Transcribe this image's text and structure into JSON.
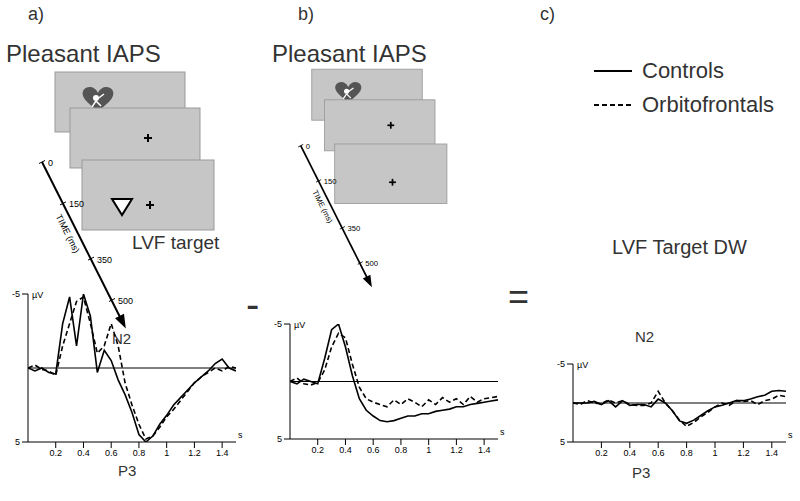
{
  "chart_data": [
    {
      "type": "line",
      "title": "Pleasant IAPS",
      "annotations": [
        "a)",
        "LVF target",
        "N2",
        "P3"
      ],
      "x_label": "s",
      "y_label": "µV",
      "xlim": [
        0,
        1.5
      ],
      "xticks": [
        0.2,
        0.4,
        0.6,
        0.8,
        1.0,
        1.2,
        1.4
      ],
      "ylim": [
        -5,
        5
      ],
      "yticks": [
        -5,
        5
      ],
      "x": [
        0,
        0.05,
        0.1,
        0.15,
        0.2,
        0.25,
        0.3,
        0.35,
        0.4,
        0.45,
        0.5,
        0.55,
        0.6,
        0.65,
        0.7,
        0.75,
        0.8,
        0.85,
        0.9,
        0.95,
        1.0,
        1.05,
        1.1,
        1.15,
        1.2,
        1.25,
        1.3,
        1.35,
        1.4,
        1.45,
        1.5
      ],
      "series": [
        {
          "name": "Controls",
          "color": "#000000",
          "line_style": "solid",
          "values": [
            0,
            0.2,
            0,
            0.3,
            0.4,
            -3,
            -4.8,
            -1.5,
            -5,
            -3.5,
            0.3,
            -1.2,
            -0.5,
            0.8,
            1.8,
            3,
            4.5,
            5,
            4.6,
            3.8,
            3.2,
            2.5,
            2,
            1.5,
            1,
            0.6,
            0.2,
            -0.3,
            -0.6,
            0,
            0.2
          ]
        },
        {
          "name": "Orbitofrontals",
          "color": "#000000",
          "line_style": "dashed",
          "values": [
            0,
            -0.2,
            0.1,
            0.2,
            0.5,
            -1.5,
            -3,
            -4.5,
            -4.8,
            -3,
            -1,
            -1.5,
            -3,
            -1.5,
            1,
            2.5,
            3.8,
            4.8,
            4.6,
            4,
            3.3,
            2.8,
            2.2,
            1.6,
            1,
            0.6,
            0.3,
            0,
            0.2,
            -0.1,
            0
          ]
        }
      ]
    },
    {
      "type": "line",
      "title": "Pleasant IAPS",
      "annotations": [
        "b)"
      ],
      "x_label": "s",
      "y_label": "µV",
      "xlim": [
        0,
        1.5
      ],
      "xticks": [
        0.2,
        0.4,
        0.6,
        0.8,
        1.0,
        1.2,
        1.4
      ],
      "ylim": [
        -5,
        5
      ],
      "yticks": [
        -5,
        5
      ],
      "x": [
        0,
        0.05,
        0.1,
        0.15,
        0.2,
        0.25,
        0.3,
        0.35,
        0.4,
        0.45,
        0.5,
        0.55,
        0.6,
        0.65,
        0.7,
        0.75,
        0.8,
        0.85,
        0.9,
        0.95,
        1.0,
        1.05,
        1.1,
        1.15,
        1.2,
        1.25,
        1.3,
        1.35,
        1.4,
        1.45,
        1.5
      ],
      "series": [
        {
          "name": "Controls",
          "color": "#000000",
          "line_style": "solid",
          "values": [
            0,
            0.2,
            -0.2,
            0,
            0.2,
            -2,
            -4.5,
            -5,
            -3,
            -0.5,
            1.5,
            2.5,
            3,
            3.4,
            3.5,
            3.4,
            3.2,
            3,
            3,
            2.8,
            2.8,
            2.6,
            2.5,
            2.4,
            2.2,
            2.2,
            2,
            1.9,
            1.8,
            1.7,
            1.6
          ]
        },
        {
          "name": "Orbitofrontals",
          "color": "#000000",
          "line_style": "dashed",
          "values": [
            0,
            -0.3,
            0.2,
            0.3,
            0.1,
            -1,
            -3,
            -4.2,
            -3.8,
            -1.5,
            0.5,
            1.5,
            1.8,
            2,
            2.2,
            1.6,
            2,
            1.5,
            1.8,
            2.2,
            1.6,
            2,
            1.4,
            1.8,
            1.5,
            2,
            1.3,
            1.8,
            1.5,
            1.4,
            1.3
          ]
        }
      ]
    },
    {
      "type": "line",
      "title": "LVF Target DW",
      "annotations": [
        "c)",
        "N2",
        "P3"
      ],
      "x_label": "s",
      "y_label": "µV",
      "xlim": [
        0,
        1.5
      ],
      "xticks": [
        0.2,
        0.4,
        0.6,
        0.8,
        1.0,
        1.2,
        1.4
      ],
      "ylim": [
        -5,
        5
      ],
      "yticks": [
        -5,
        5
      ],
      "x": [
        0,
        0.05,
        0.1,
        0.15,
        0.2,
        0.25,
        0.3,
        0.35,
        0.4,
        0.45,
        0.5,
        0.55,
        0.6,
        0.65,
        0.7,
        0.75,
        0.8,
        0.85,
        0.9,
        0.95,
        1.0,
        1.05,
        1.1,
        1.15,
        1.2,
        1.25,
        1.3,
        1.35,
        1.4,
        1.45,
        1.5
      ],
      "series": [
        {
          "name": "Controls",
          "color": "#000000",
          "line_style": "solid",
          "values": [
            0,
            0,
            0,
            -0.2,
            0.2,
            -0.3,
            0.5,
            -0.3,
            0.3,
            0.2,
            0.2,
            0.5,
            -0.5,
            0,
            1,
            2.3,
            2.6,
            2.2,
            1.6,
            1,
            0.5,
            0.3,
            0,
            -0.3,
            -0.3,
            -0.5,
            -0.8,
            -1,
            -1.5,
            -1.6,
            -1.5
          ]
        },
        {
          "name": "Orbitofrontals",
          "color": "#000000",
          "line_style": "dashed",
          "values": [
            0,
            0.2,
            -0.3,
            0,
            0.1,
            -0.4,
            0,
            -0.3,
            0.2,
            0.3,
            0.3,
            0,
            -1.5,
            0,
            1,
            2.2,
            3,
            2.5,
            1.8,
            1.2,
            0.5,
            0,
            0.3,
            -0.3,
            -0.2,
            -0.3,
            0.2,
            -0.3,
            -0.5,
            -1,
            -0.8
          ]
        }
      ]
    }
  ],
  "diagram": {
    "operators": [
      "-",
      "="
    ],
    "timeline": {
      "label": "TIME (ms)",
      "ticks": [
        0,
        150,
        350,
        500
      ]
    }
  }
}
